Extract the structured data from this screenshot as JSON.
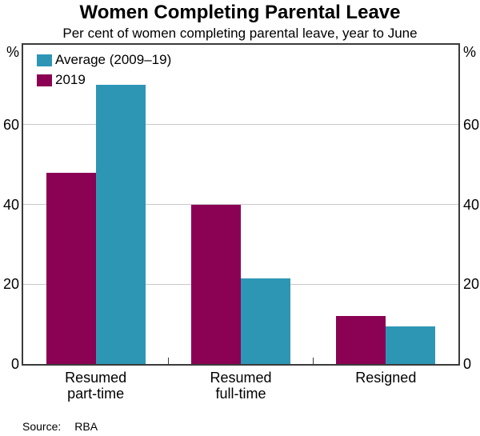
{
  "title": "Women Completing Parental Leave",
  "subtitle": "Per cent of women completing parental leave, year to June",
  "axis_units": {
    "left": "%",
    "right": "%"
  },
  "source": {
    "label": "Source:",
    "value": "RBA"
  },
  "colors": {
    "average_series": "#2E96B5",
    "series_2019": "#8B0153",
    "frame": "#3B3B3B",
    "gridline": "#C8C8C8",
    "text": "#000000"
  },
  "chart_data": {
    "type": "bar",
    "categories": [
      "Resumed\npart-time",
      "Resumed\nfull-time",
      "Resigned"
    ],
    "series": [
      {
        "name": "Average (2009–19)",
        "color": "#2E96B5",
        "values": [
          70,
          21.5,
          9.5
        ]
      },
      {
        "name": "2019",
        "color": "#8B0153",
        "values": [
          48,
          40,
          12
        ]
      }
    ],
    "bar_order_in_group": [
      1,
      0
    ],
    "ylim": [
      0,
      80
    ],
    "yticks": [
      0,
      20,
      40,
      60
    ],
    "y_unit": "%",
    "grid": true,
    "legend_position": "top-left"
  }
}
